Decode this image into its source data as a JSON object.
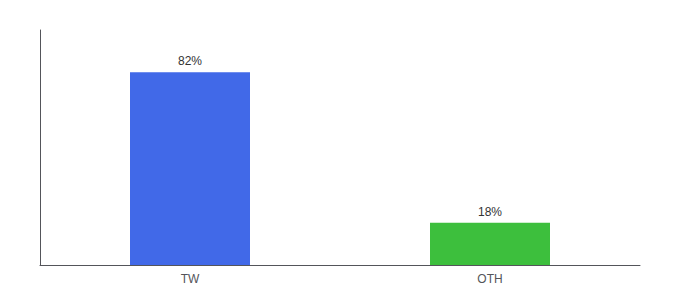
{
  "chart_data": {
    "type": "bar",
    "categories": [
      "TW",
      "OTH"
    ],
    "values": [
      82,
      18
    ],
    "value_labels": [
      "82%",
      "18%"
    ],
    "colors": [
      "#4169e8",
      "#3dbf3d"
    ],
    "ylim": [
      0,
      100
    ],
    "data_labels": true,
    "tick_labels": "x",
    "grid": false
  }
}
